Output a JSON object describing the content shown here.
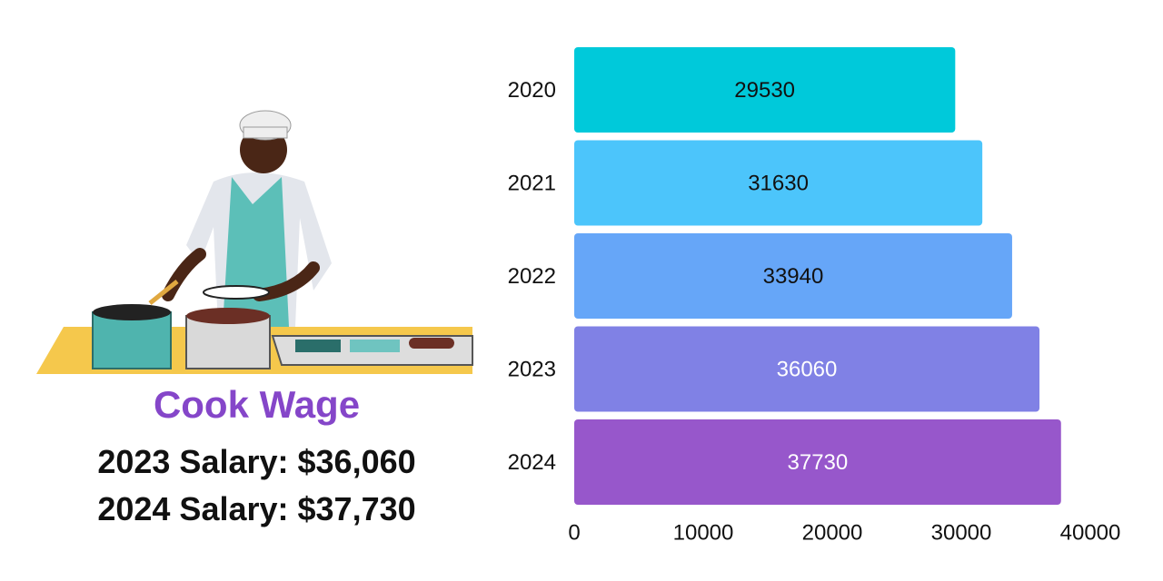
{
  "illustration": {
    "icon": "cook-at-stove-icon",
    "description_hidden": ""
  },
  "summary": {
    "title": "Cook Wage",
    "salary_2023": "2023 Salary: $36,060",
    "salary_2024": "2024 Salary: $37,730",
    "title_color": "#8546c9"
  },
  "chart_data": {
    "type": "bar",
    "orientation": "horizontal",
    "categories": [
      "2020",
      "2021",
      "2022",
      "2023",
      "2024"
    ],
    "values": [
      29530,
      31630,
      33940,
      36060,
      37730
    ],
    "data_labels": [
      "29530",
      "31630",
      "33940",
      "36060",
      "37730"
    ],
    "bar_colors": [
      "#00c9da",
      "#4cc5fb",
      "#66a6f8",
      "#8081e5",
      "#9757cb"
    ],
    "label_colors": [
      "#111111",
      "#111111",
      "#111111",
      "#ffffff",
      "#ffffff"
    ],
    "xlim": [
      0,
      40000
    ],
    "xticks": [
      "0",
      "10000",
      "20000",
      "30000",
      "40000"
    ],
    "title": "",
    "xlabel": "",
    "ylabel": "",
    "grid": false,
    "legend": "none"
  }
}
